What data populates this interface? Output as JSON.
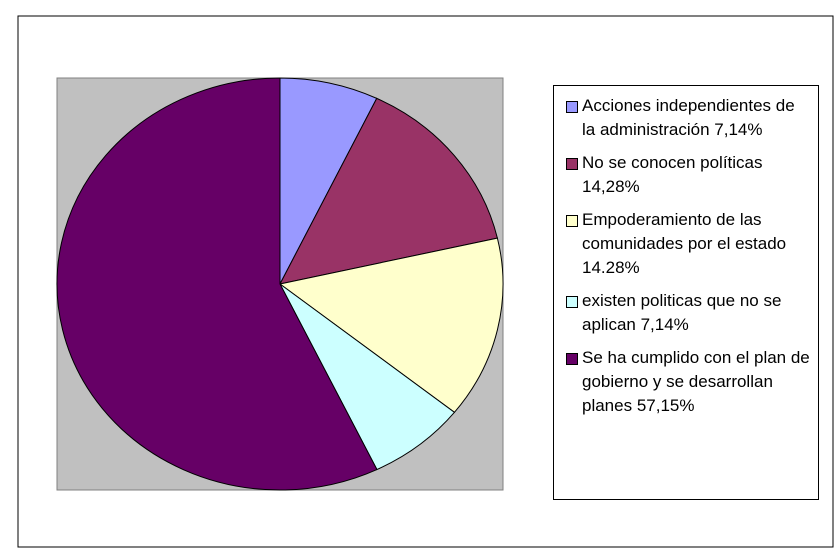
{
  "chart_data": {
    "type": "pie",
    "series": [
      {
        "name": "Acciones independientes de la administración 7,14%",
        "color": "#9999ff",
        "values": [
          7.14
        ]
      },
      {
        "name": "No se conocen políticas 14,28%",
        "color": "#993366",
        "values": [
          14.28
        ]
      },
      {
        "name": "Empoderamiento de las comunidades por el estado 14.28%",
        "color": "#ffffcc",
        "values": [
          14.28
        ]
      },
      {
        "name": "existen politicas que no se aplican 7,14%",
        "color": "#ccffff",
        "values": [
          7.14
        ]
      },
      {
        "name": "Se ha cumplido con el plan de gobierno y se desarrollan planes 57,15%",
        "color": "#660066",
        "values": [
          57.15
        ]
      }
    ],
    "plot_background": "#c0c0c0"
  }
}
